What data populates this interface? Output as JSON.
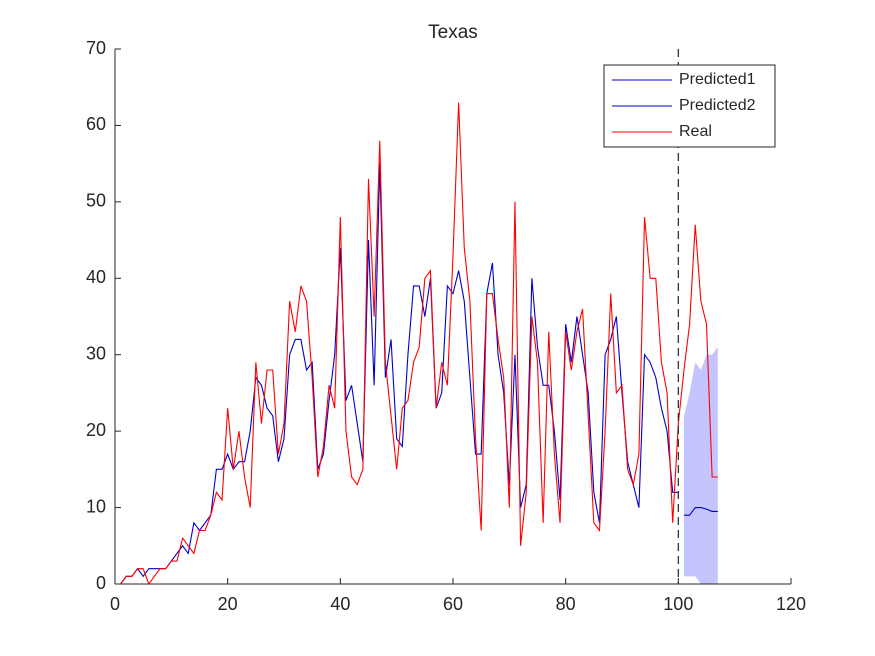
{
  "chart_data": {
    "type": "line",
    "title": "Texas",
    "xlim": [
      0,
      120
    ],
    "xticks": [
      0,
      20,
      40,
      60,
      80,
      100,
      120
    ],
    "ylim": [
      0,
      70
    ],
    "yticks": [
      0,
      10,
      20,
      30,
      40,
      50,
      60,
      70
    ],
    "legend": "upper right",
    "vline": 100,
    "series": [
      {
        "name": "Predicted1",
        "color": "#0000cc",
        "x": [
          1,
          2,
          3,
          4,
          5,
          6,
          7,
          8,
          9,
          10,
          11,
          12,
          13,
          14,
          15,
          16,
          17,
          18,
          19,
          20,
          21,
          22,
          23,
          24,
          25,
          26,
          27,
          28,
          29,
          30,
          31,
          32,
          33,
          34,
          35,
          36,
          37,
          38,
          39,
          40,
          41,
          42,
          43,
          44,
          45,
          46,
          47,
          48,
          49,
          50,
          51,
          52,
          53,
          54,
          55,
          56,
          57,
          58,
          59,
          60,
          61,
          62,
          63,
          64,
          65,
          66,
          67,
          68,
          69,
          70,
          71,
          72,
          73,
          74,
          75,
          76,
          77,
          78,
          79,
          80,
          81,
          82,
          83,
          84,
          85,
          86,
          87,
          88,
          89,
          90,
          91,
          92,
          93,
          94,
          95,
          96,
          97,
          98,
          99,
          100
        ],
        "values": [
          0,
          1,
          1,
          2,
          1,
          2,
          2,
          2,
          2,
          3,
          4,
          5,
          4,
          8,
          7,
          8,
          9,
          15,
          15,
          17,
          15,
          16,
          16,
          20,
          27,
          26,
          23,
          22,
          16,
          19,
          30,
          32,
          32,
          28,
          29,
          15,
          17,
          24,
          30,
          44,
          24,
          26,
          21,
          16,
          45,
          26,
          55,
          27,
          32,
          19,
          18,
          30,
          39,
          39,
          35,
          40,
          23,
          25,
          39,
          38,
          41,
          37,
          27,
          17,
          17,
          38,
          42,
          30,
          25,
          13,
          30,
          10,
          13,
          40,
          31,
          26,
          26,
          20,
          11,
          34,
          29,
          35,
          30,
          25,
          12,
          8,
          30,
          32,
          35,
          25,
          16,
          13,
          10,
          30,
          29,
          27,
          23,
          20,
          12,
          12
        ]
      },
      {
        "name": "Predicted2",
        "color": "#0000cc",
        "x": [
          101,
          102,
          103,
          104,
          105,
          106,
          107
        ],
        "values": [
          9,
          9,
          10,
          10,
          9.8,
          9.5,
          9.5
        ]
      },
      {
        "name": "Real",
        "color": "#ff0000",
        "x": [
          1,
          2,
          3,
          4,
          5,
          6,
          7,
          8,
          9,
          10,
          11,
          12,
          13,
          14,
          15,
          16,
          17,
          18,
          19,
          20,
          21,
          22,
          23,
          24,
          25,
          26,
          27,
          28,
          29,
          30,
          31,
          32,
          33,
          34,
          35,
          36,
          37,
          38,
          39,
          40,
          41,
          42,
          43,
          44,
          45,
          46,
          47,
          48,
          49,
          50,
          51,
          52,
          53,
          54,
          55,
          56,
          57,
          58,
          59,
          60,
          61,
          62,
          63,
          64,
          65,
          66,
          67,
          68,
          69,
          70,
          71,
          72,
          73,
          74,
          75,
          76,
          77,
          78,
          79,
          80,
          81,
          82,
          83,
          84,
          85,
          86,
          87,
          88,
          89,
          90,
          91,
          92,
          93,
          94,
          95,
          96,
          97,
          98,
          99,
          100,
          101,
          102,
          103,
          104,
          105,
          106,
          107
        ],
        "values": [
          0,
          1,
          1,
          2,
          2,
          0,
          1,
          2,
          2,
          3,
          3,
          6,
          5,
          4,
          7,
          7,
          9,
          12,
          11,
          23,
          15,
          20,
          14,
          10,
          29,
          21,
          28,
          28,
          17,
          21,
          37,
          33,
          39,
          37,
          27,
          14,
          18,
          26,
          23,
          48,
          20,
          14,
          13,
          15,
          53,
          35,
          58,
          29,
          22,
          15,
          23,
          24,
          29,
          31,
          40,
          41,
          23,
          29,
          26,
          43,
          63,
          44,
          37,
          19,
          7,
          38,
          38,
          32,
          27,
          10,
          50,
          5,
          12,
          35,
          29,
          8,
          33,
          17,
          8,
          33,
          28,
          33,
          36,
          22,
          8,
          7,
          20,
          38,
          25,
          26,
          15,
          13,
          17,
          48,
          40,
          40,
          29,
          25,
          8,
          21,
          28,
          34,
          47,
          37,
          34,
          14,
          14
        ]
      }
    ],
    "band": {
      "color": "#c4c4ff",
      "x": [
        101,
        102,
        103,
        104,
        105,
        106,
        107
      ],
      "upper": [
        22,
        25,
        29,
        28,
        30,
        30,
        31
      ],
      "lower": [
        1,
        1,
        1,
        0,
        0,
        0,
        0
      ]
    }
  }
}
